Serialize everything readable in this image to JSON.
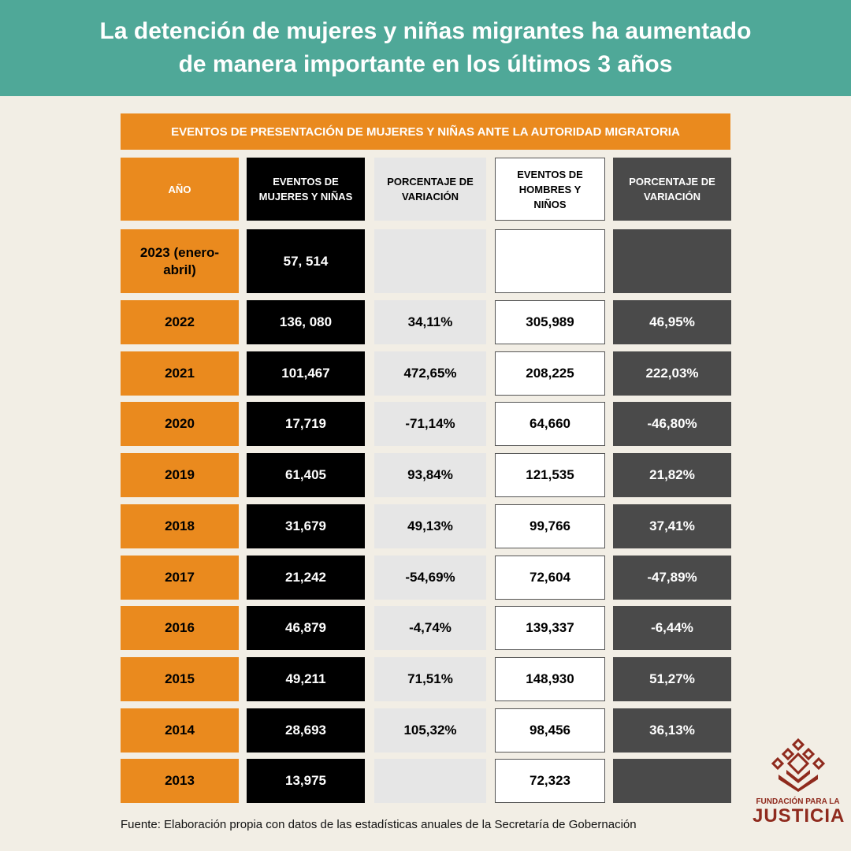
{
  "header": {
    "title": "La detención de mujeres y niñas migrantes ha aumentado de manera importante en los últimos 3 años"
  },
  "table": {
    "caption": "EVENTOS DE PRESENTACIÓN DE MUJERES Y NIÑAS ANTE LA AUTORIDAD MIGRATORIA",
    "headers": [
      "AÑO",
      "EVENTOS DE MUJERES Y NIÑAS",
      "PORCENTAJE DE VARIACIÓN",
      "EVENTOS DE HOMBRES Y NIÑOS",
      "PORCENTAJE DE VARIACIÓN"
    ],
    "rows": [
      [
        "2023 (enero-abril)",
        "57, 514",
        null,
        null,
        null
      ],
      [
        "2022",
        "136, 080",
        "34,11%",
        "305,989",
        "46,95%"
      ],
      [
        "2021",
        "101,467",
        "472,65%",
        "208,225",
        "222,03%"
      ],
      [
        "2020",
        "17,719",
        "-71,14%",
        "64,660",
        "-46,80%"
      ],
      [
        "2019",
        "61,405",
        "93,84%",
        "121,535",
        "21,82%"
      ],
      [
        "2018",
        "31,679",
        "49,13%",
        "99,766",
        "37,41%"
      ],
      [
        "2017",
        "21,242",
        "-54,69%",
        "72,604",
        "-47,89%"
      ],
      [
        "2016",
        "46,879",
        "-4,74%",
        "139,337",
        "-6,44%"
      ],
      [
        "2015",
        "49,211",
        "71,51%",
        "148,930",
        "51,27%"
      ],
      [
        "2014",
        "28,693",
        "105,32%",
        "98,456",
        "36,13%"
      ],
      [
        "2013",
        "13,975",
        null,
        "72,323",
        null
      ]
    ]
  },
  "footer": {
    "source": "Fuente: Elaboración propia con datos de las estadísticas anuales de la Secretaría de Gobernación"
  },
  "logo": {
    "line1": "FUNDACIÓN PARA LA",
    "line2": "JUSTICIA"
  }
}
